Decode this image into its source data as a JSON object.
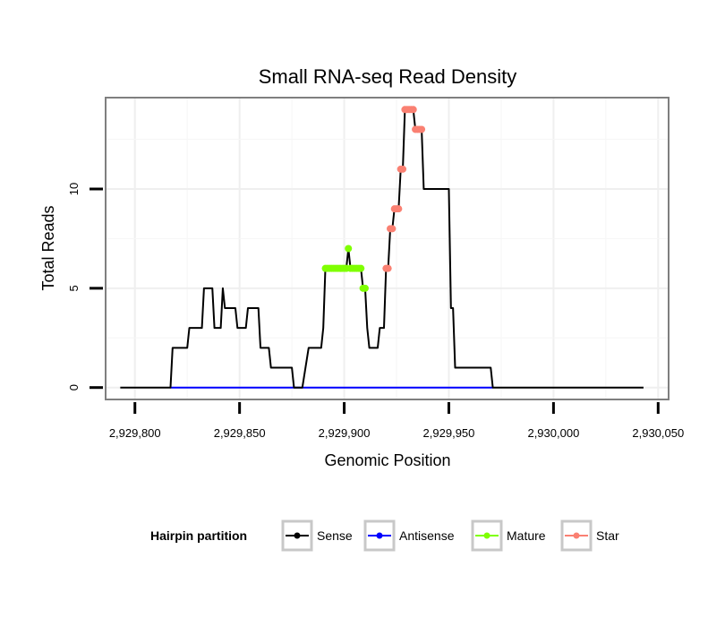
{
  "chart_data": {
    "type": "line",
    "title": "Small RNA-seq Read Density",
    "xlabel": "Genomic Position",
    "ylabel": "Total Reads",
    "xlim": [
      2929786,
      2930055
    ],
    "ylim": [
      -0.6,
      14.6
    ],
    "x_ticks": [
      2929800,
      2929850,
      2929900,
      2929950,
      2930000,
      2930050
    ],
    "x_tick_labels": [
      "2,929,800",
      "2,929,850",
      "2,929,900",
      "2,929,950",
      "2,930,000",
      "2,930,050"
    ],
    "y_ticks": [
      0,
      5,
      10
    ],
    "y_tick_labels": [
      "0",
      "5",
      "10"
    ],
    "grid": true,
    "legend": {
      "title": "Hairpin partition",
      "position": "bottom",
      "entries": [
        {
          "label": "Sense",
          "color": "#000000"
        },
        {
          "label": "Antisense",
          "color": "#0000ff"
        },
        {
          "label": "Mature",
          "color": "#7fff00"
        },
        {
          "label": "Star",
          "color": "#fa8072"
        }
      ]
    },
    "series": [
      {
        "name": "Sense",
        "color": "#000000",
        "points": [
          [
            2929793,
            0
          ],
          [
            2929817,
            0
          ],
          [
            2929818,
            2
          ],
          [
            2929825,
            2
          ],
          [
            2929826,
            3
          ],
          [
            2929832,
            3
          ],
          [
            2929833,
            5
          ],
          [
            2929837,
            5
          ],
          [
            2929838,
            3
          ],
          [
            2929841,
            3
          ],
          [
            2929842,
            5
          ],
          [
            2929843,
            4
          ],
          [
            2929848,
            4
          ],
          [
            2929849,
            3
          ],
          [
            2929853,
            3
          ],
          [
            2929854,
            4
          ],
          [
            2929859,
            4
          ],
          [
            2929860,
            2
          ],
          [
            2929864,
            2
          ],
          [
            2929865,
            1
          ],
          [
            2929875,
            1
          ],
          [
            2929876,
            0
          ],
          [
            2929880,
            0
          ],
          [
            2929883,
            2
          ],
          [
            2929889,
            2
          ],
          [
            2929890,
            3
          ],
          [
            2929891,
            6
          ],
          [
            2929901,
            6
          ],
          [
            2929902,
            7
          ],
          [
            2929903,
            6
          ],
          [
            2929908,
            6
          ],
          [
            2929909,
            5
          ],
          [
            2929910,
            5
          ],
          [
            2929911,
            3
          ],
          [
            2929912,
            2
          ],
          [
            2929916,
            2
          ],
          [
            2929917,
            3
          ],
          [
            2929919,
            3
          ],
          [
            2929920,
            6
          ],
          [
            2929921,
            6
          ],
          [
            2929922,
            8
          ],
          [
            2929923,
            8
          ],
          [
            2929924,
            9
          ],
          [
            2929926,
            9
          ],
          [
            2929927,
            11
          ],
          [
            2929928,
            11
          ],
          [
            2929929,
            14
          ],
          [
            2929933,
            14
          ],
          [
            2929934,
            13
          ],
          [
            2929937,
            13
          ],
          [
            2929938,
            10
          ],
          [
            2929950,
            10
          ],
          [
            2929951,
            4
          ],
          [
            2929952,
            4
          ],
          [
            2929953,
            1
          ],
          [
            2929970,
            1
          ],
          [
            2929971,
            0
          ],
          [
            2930043,
            0
          ]
        ]
      },
      {
        "name": "Antisense",
        "color": "#0000ff",
        "points": [
          [
            2929817,
            0
          ],
          [
            2929971,
            0
          ]
        ]
      },
      {
        "name": "Mature",
        "color": "#7fff00",
        "points": [
          [
            2929891,
            6
          ],
          [
            2929892,
            6
          ],
          [
            2929893,
            6
          ],
          [
            2929894,
            6
          ],
          [
            2929895,
            6
          ],
          [
            2929896,
            6
          ],
          [
            2929897,
            6
          ],
          [
            2929898,
            6
          ],
          [
            2929899,
            6
          ],
          [
            2929900,
            6
          ],
          [
            2929901,
            6
          ],
          [
            2929902,
            7
          ],
          [
            2929903,
            6
          ],
          [
            2929904,
            6
          ],
          [
            2929905,
            6
          ],
          [
            2929906,
            6
          ],
          [
            2929907,
            6
          ],
          [
            2929908,
            6
          ],
          [
            2929909,
            5
          ],
          [
            2929910,
            5
          ]
        ]
      },
      {
        "name": "Star",
        "color": "#fa8072",
        "points": [
          [
            2929920,
            6
          ],
          [
            2929921,
            6
          ],
          [
            2929922,
            8
          ],
          [
            2929923,
            8
          ],
          [
            2929924,
            9
          ],
          [
            2929925,
            9
          ],
          [
            2929926,
            9
          ],
          [
            2929927,
            11
          ],
          [
            2929928,
            11
          ],
          [
            2929929,
            14
          ],
          [
            2929930,
            14
          ],
          [
            2929931,
            14
          ],
          [
            2929932,
            14
          ],
          [
            2929933,
            14
          ],
          [
            2929934,
            13
          ],
          [
            2929935,
            13
          ],
          [
            2929936,
            13
          ],
          [
            2929937,
            13
          ]
        ]
      }
    ]
  }
}
